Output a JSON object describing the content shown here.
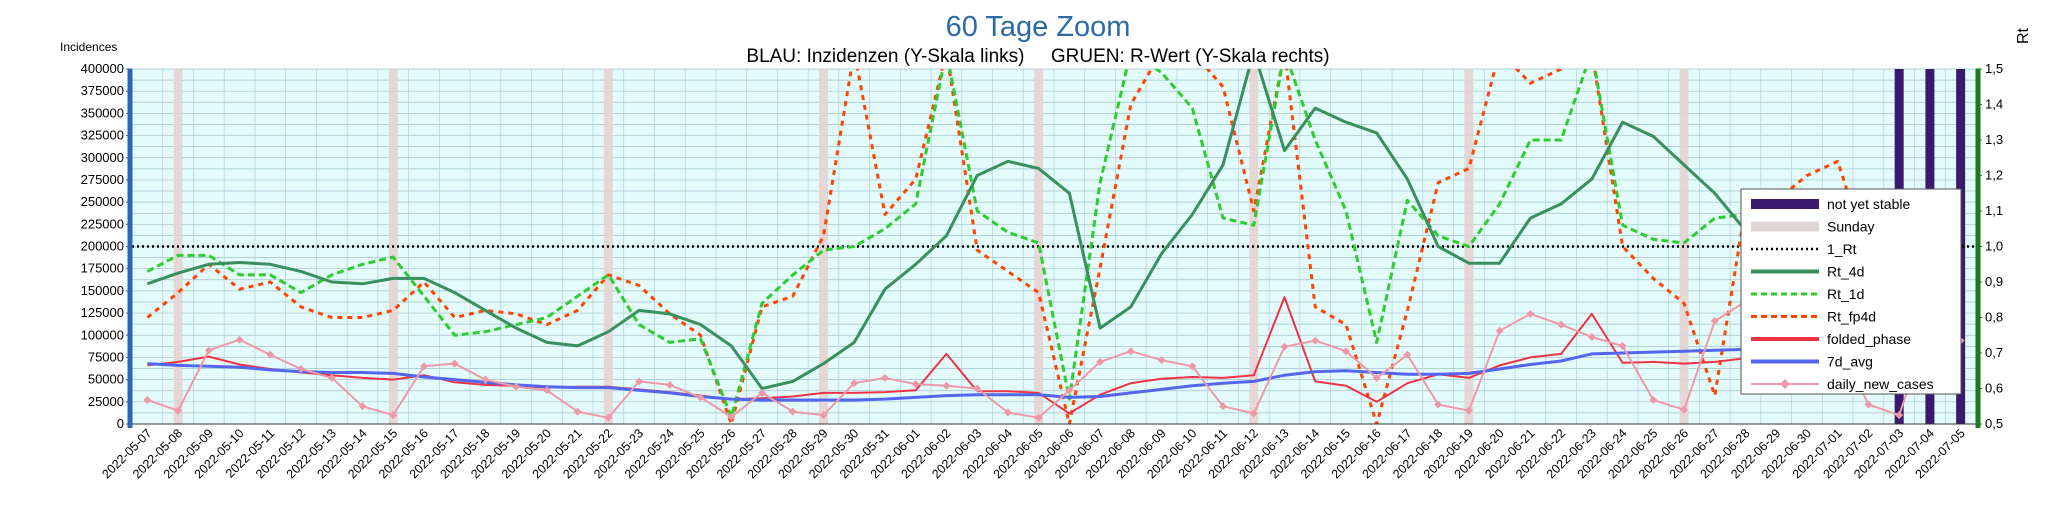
{
  "chart_data": {
    "type": "line",
    "title": "60 Tage Zoom",
    "subtitle": "BLAU: Inzidenzen (Y-Skala links)     GRUEN: R-Wert (Y-Skala rechts)",
    "ylabel_left": "Incidences",
    "ylabel_right": "Rt",
    "y_left_lim": [
      0,
      400000
    ],
    "y_left_ticks": [
      0,
      25000,
      50000,
      75000,
      100000,
      125000,
      150000,
      175000,
      200000,
      225000,
      250000,
      275000,
      300000,
      325000,
      350000,
      375000,
      400000
    ],
    "y_right_lim": [
      0.5,
      1.5
    ],
    "y_right_ticks": [
      "0,5",
      "0,6",
      "0,7",
      "0,8",
      "0,9",
      "1,0",
      "1,1",
      "1,2",
      "1,3",
      "1,4",
      "1,5"
    ],
    "categories": [
      "2022-05-07",
      "2022-05-08",
      "2022-05-09",
      "2022-05-10",
      "2022-05-11",
      "2022-05-12",
      "2022-05-13",
      "2022-05-14",
      "2022-05-15",
      "2022-05-16",
      "2022-05-17",
      "2022-05-18",
      "2022-05-19",
      "2022-05-20",
      "2022-05-21",
      "2022-05-22",
      "2022-05-23",
      "2022-05-24",
      "2022-05-25",
      "2022-05-26",
      "2022-05-27",
      "2022-05-28",
      "2022-05-29",
      "2022-05-30",
      "2022-05-31",
      "2022-06-01",
      "2022-06-02",
      "2022-06-03",
      "2022-06-04",
      "2022-06-05",
      "2022-06-06",
      "2022-06-07",
      "2022-06-08",
      "2022-06-09",
      "2022-06-10",
      "2022-06-11",
      "2022-06-12",
      "2022-06-13",
      "2022-06-14",
      "2022-06-15",
      "2022-06-16",
      "2022-06-17",
      "2022-06-18",
      "2022-06-19",
      "2022-06-20",
      "2022-06-21",
      "2022-06-22",
      "2022-06-23",
      "2022-06-24",
      "2022-06-25",
      "2022-06-26",
      "2022-06-27",
      "2022-06-28",
      "2022-06-29",
      "2022-06-30",
      "2022-07-01",
      "2022-07-02",
      "2022-07-03",
      "2022-07-04",
      "2022-07-05"
    ],
    "sundays": [
      "2022-05-08",
      "2022-05-15",
      "2022-05-22",
      "2022-05-29",
      "2022-06-05",
      "2022-06-12",
      "2022-06-19",
      "2022-06-26",
      "2022-07-03"
    ],
    "not_yet_stable": [
      "2022-07-03",
      "2022-07-04",
      "2022-07-05"
    ],
    "one_rt_value": 1.0,
    "grid": true,
    "legend_position": "right",
    "legend": [
      {
        "name": "not yet stable",
        "color": "#3b1a6e",
        "style": "bar"
      },
      {
        "name": "Sunday",
        "color": "#e0d4d4",
        "style": "bar"
      },
      {
        "name": "1_Rt",
        "color": "#000000",
        "style": "dotted"
      },
      {
        "name": "Rt_4d",
        "color": "#3a8f5e",
        "style": "solid"
      },
      {
        "name": "Rt_1d",
        "color": "#2ecc2e",
        "style": "dashed"
      },
      {
        "name": "Rt_fp4d",
        "color": "#ff4500",
        "style": "dashed"
      },
      {
        "name": "folded_phase",
        "color": "#ee3344",
        "style": "solid"
      },
      {
        "name": "7d_avg",
        "color": "#5566ee",
        "style": "solid"
      },
      {
        "name": "daily_new_cases",
        "color": "#ee99a8",
        "style": "marker"
      }
    ],
    "series_left": [
      {
        "name": "folded_phase",
        "color": "#ee3344",
        "width": 2,
        "values": [
          66000,
          70000,
          76000,
          67000,
          62000,
          58000,
          55000,
          52000,
          50000,
          55000,
          47000,
          44000,
          43000,
          41000,
          42000,
          42000,
          39000,
          36000,
          32000,
          28000,
          29000,
          31000,
          35000,
          35000,
          36000,
          38000,
          79000,
          37000,
          37000,
          35000,
          12000,
          33000,
          46000,
          51000,
          53000,
          52000,
          55000,
          143000,
          48000,
          43000,
          25000,
          46000,
          56000,
          52000,
          66000,
          75000,
          79000,
          124000,
          69000,
          70000,
          68000,
          70000,
          74000,
          78000,
          82000,
          86000,
          71000,
          72000,
          81000,
          65000
        ]
      },
      {
        "name": "7d_avg",
        "color": "#5566ee",
        "width": 3,
        "values": [
          68000,
          66000,
          65000,
          64000,
          61000,
          59000,
          58000,
          58000,
          57000,
          53000,
          50000,
          47000,
          44000,
          42000,
          41000,
          41000,
          38000,
          35000,
          31000,
          28000,
          27000,
          27000,
          27000,
          27000,
          28000,
          30000,
          32000,
          33000,
          33000,
          33000,
          30000,
          31000,
          35000,
          39000,
          43000,
          46000,
          48000,
          55000,
          59000,
          60000,
          58000,
          56000,
          56000,
          57000,
          62000,
          67000,
          71000,
          79000,
          80000,
          81000,
          82000,
          83000,
          84000,
          85000,
          86000,
          87000,
          88000,
          88000,
          87000,
          80000
        ]
      },
      {
        "name": "daily_new_cases",
        "color": "#ee99a8",
        "width": 2,
        "values": [
          27000,
          15000,
          83000,
          95000,
          78000,
          62000,
          52000,
          20000,
          10000,
          65000,
          68000,
          50000,
          42000,
          38000,
          14000,
          7000,
          48000,
          44000,
          30000,
          8000,
          35000,
          14000,
          10000,
          46000,
          52000,
          45000,
          43000,
          40000,
          13000,
          7000,
          38000,
          70000,
          82000,
          72000,
          65000,
          20000,
          12000,
          87000,
          94000,
          82000,
          52000,
          78000,
          22000,
          15000,
          105000,
          124000,
          112000,
          98000,
          88000,
          27000,
          16000,
          116000,
          138000,
          124000,
          108000,
          95000,
          22000,
          10000,
          113000,
          94000
        ]
      }
    ],
    "series_right": [
      {
        "name": "Rt_4d",
        "color": "#3a8f5e",
        "width": 3,
        "dash": "",
        "values": [
          0.895,
          0.925,
          0.95,
          0.955,
          0.95,
          0.93,
          0.9,
          0.895,
          0.91,
          0.91,
          0.87,
          0.82,
          0.77,
          0.73,
          0.72,
          0.76,
          0.82,
          0.81,
          0.78,
          0.72,
          0.6,
          0.62,
          0.67,
          0.73,
          0.88,
          0.95,
          1.03,
          1.2,
          1.24,
          1.22,
          1.15,
          0.77,
          0.83,
          0.98,
          1.09,
          1.23,
          1.55,
          1.27,
          1.39,
          1.35,
          1.32,
          1.19,
          1.0,
          0.953,
          0.953,
          1.08,
          1.12,
          1.19,
          1.35,
          1.31,
          1.23,
          1.15,
          1.045,
          1.045,
          1.055,
          1.07,
          1.06,
          1.03,
          1.01,
          0.91
        ]
      },
      {
        "name": "Rt_1d",
        "color": "#2ecc2e",
        "width": 3,
        "dash": "7,4",
        "values": [
          0.93,
          0.975,
          0.975,
          0.92,
          0.92,
          0.87,
          0.92,
          0.95,
          0.97,
          0.86,
          0.75,
          0.76,
          0.78,
          0.8,
          0.86,
          0.92,
          0.78,
          0.73,
          0.74,
          0.52,
          0.84,
          0.92,
          0.99,
          1.0,
          1.05,
          1.12,
          1.55,
          1.1,
          1.04,
          1.01,
          0.57,
          1.18,
          1.55,
          1.49,
          1.39,
          1.08,
          1.06,
          1.55,
          1.3,
          1.1,
          0.73,
          1.13,
          1.03,
          1.0,
          1.12,
          1.3,
          1.3,
          1.55,
          1.06,
          1.02,
          1.01,
          1.08,
          1.09,
          1.05,
          1.05,
          1.04,
          0.98,
          0.98,
          0.97,
          0.68
        ]
      },
      {
        "name": "Rt_fp4d",
        "color": "#ff4500",
        "width": 3,
        "dash": "5,5",
        "values": [
          0.8,
          0.87,
          0.95,
          0.88,
          0.9,
          0.83,
          0.8,
          0.8,
          0.82,
          0.9,
          0.8,
          0.82,
          0.81,
          0.78,
          0.82,
          0.92,
          0.89,
          0.81,
          0.75,
          0.5,
          0.83,
          0.86,
          1.03,
          1.55,
          1.09,
          1.19,
          1.55,
          0.99,
          0.93,
          0.87,
          0.5,
          0.94,
          1.4,
          1.55,
          1.55,
          1.45,
          1.1,
          1.55,
          0.83,
          0.78,
          0.5,
          0.82,
          1.18,
          1.22,
          1.55,
          1.46,
          1.5,
          1.55,
          1.0,
          0.91,
          0.84,
          0.58,
          1.11,
          1.13,
          1.2,
          1.24,
          0.97,
          0.92,
          0.94,
          0.75
        ]
      }
    ]
  }
}
